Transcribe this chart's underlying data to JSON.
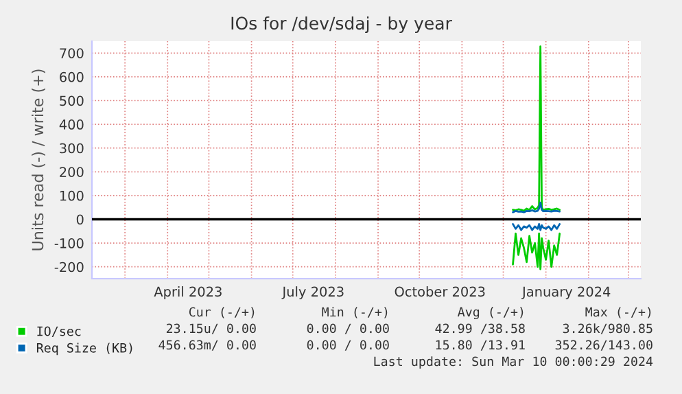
{
  "chart_data": {
    "type": "line",
    "title": "IOs for /dev/sdaj - by year",
    "ylabel": "Units read (-) / write (+)",
    "x": [
      "2023-12-08",
      "2023-12-10",
      "2023-12-12",
      "2023-12-14",
      "2023-12-16",
      "2023-12-18",
      "2023-12-20",
      "2023-12-22",
      "2023-12-24",
      "2023-12-26",
      "2023-12-27",
      "2023-12-28",
      "2023-12-29",
      "2023-12-30",
      "2024-01-01",
      "2024-01-03",
      "2024-01-05",
      "2024-01-07",
      "2024-01-09",
      "2024-01-11"
    ],
    "series": [
      {
        "name": "IO/sec",
        "color": "#00cc00",
        "values": [
          40,
          38,
          42,
          40,
          36,
          45,
          40,
          55,
          42,
          48,
          60,
          728,
          50,
          40,
          42,
          44,
          40,
          42,
          45,
          40
        ]
      },
      {
        "color": "#00cc00",
        "values": [
          -190,
          -60,
          -150,
          -80,
          -120,
          -180,
          -70,
          -140,
          -100,
          -200,
          -60,
          -210,
          -80,
          -120,
          -170,
          -90,
          -200,
          -110,
          -150,
          -60
        ]
      },
      {
        "name": "Req Size (KB)",
        "color": "#0066b3",
        "values": [
          30,
          35,
          32,
          33,
          30,
          35,
          34,
          38,
          33,
          36,
          45,
          70,
          40,
          34,
          35,
          34,
          33,
          36,
          35,
          33
        ]
      },
      {
        "color": "#0066b3",
        "values": [
          -20,
          -40,
          -25,
          -45,
          -30,
          -35,
          -25,
          -45,
          -30,
          -40,
          -20,
          -45,
          -25,
          -35,
          -40,
          -30,
          -45,
          -25,
          -40,
          -20
        ]
      }
    ],
    "xlim": [
      "2023-02-05",
      "2024-03-10"
    ],
    "xticks": [
      {
        "value": "2023-03-01",
        "label": null
      },
      {
        "value": "2023-04-01",
        "label": null
      },
      {
        "value": "2023-04-16",
        "label": "April 2023"
      },
      {
        "value": "2023-05-01",
        "label": null
      },
      {
        "value": "2023-06-01",
        "label": null
      },
      {
        "value": "2023-07-01",
        "label": null
      },
      {
        "value": "2023-07-16",
        "label": "July 2023"
      },
      {
        "value": "2023-08-01",
        "label": null
      },
      {
        "value": "2023-09-01",
        "label": null
      },
      {
        "value": "2023-10-01",
        "label": null
      },
      {
        "value": "2023-10-16",
        "label": "October 2023"
      },
      {
        "value": "2023-11-01",
        "label": null
      },
      {
        "value": "2023-12-01",
        "label": null
      },
      {
        "value": "2024-01-01",
        "label": null
      },
      {
        "value": "2024-01-16",
        "label": "January 2024"
      },
      {
        "value": "2024-02-01",
        "label": null
      },
      {
        "value": "2024-03-01",
        "label": null
      }
    ],
    "ylim": [
      -250,
      750
    ],
    "yticks": [
      -200,
      -100,
      0,
      100,
      200,
      300,
      400,
      500,
      600,
      700
    ],
    "grid": true,
    "legend": "bottom left",
    "ref_lines": [
      {
        "axis": "y",
        "value": 0,
        "color": "#000000"
      }
    ],
    "annotations": [
      "Cur (-/+)",
      "Min (-/+)",
      "Avg (-/+)",
      "Max (-/+)",
      "23.15u/ 0.00",
      "0.00 / 0.00",
      "42.99 /38.58",
      "3.26k/980.85",
      "456.63m/ 0.00",
      "0.00 / 0.00",
      "15.80 /13.91",
      "352.26/143.00",
      "Last update: Sun Mar 10 00:00:29 2024"
    ]
  }
}
